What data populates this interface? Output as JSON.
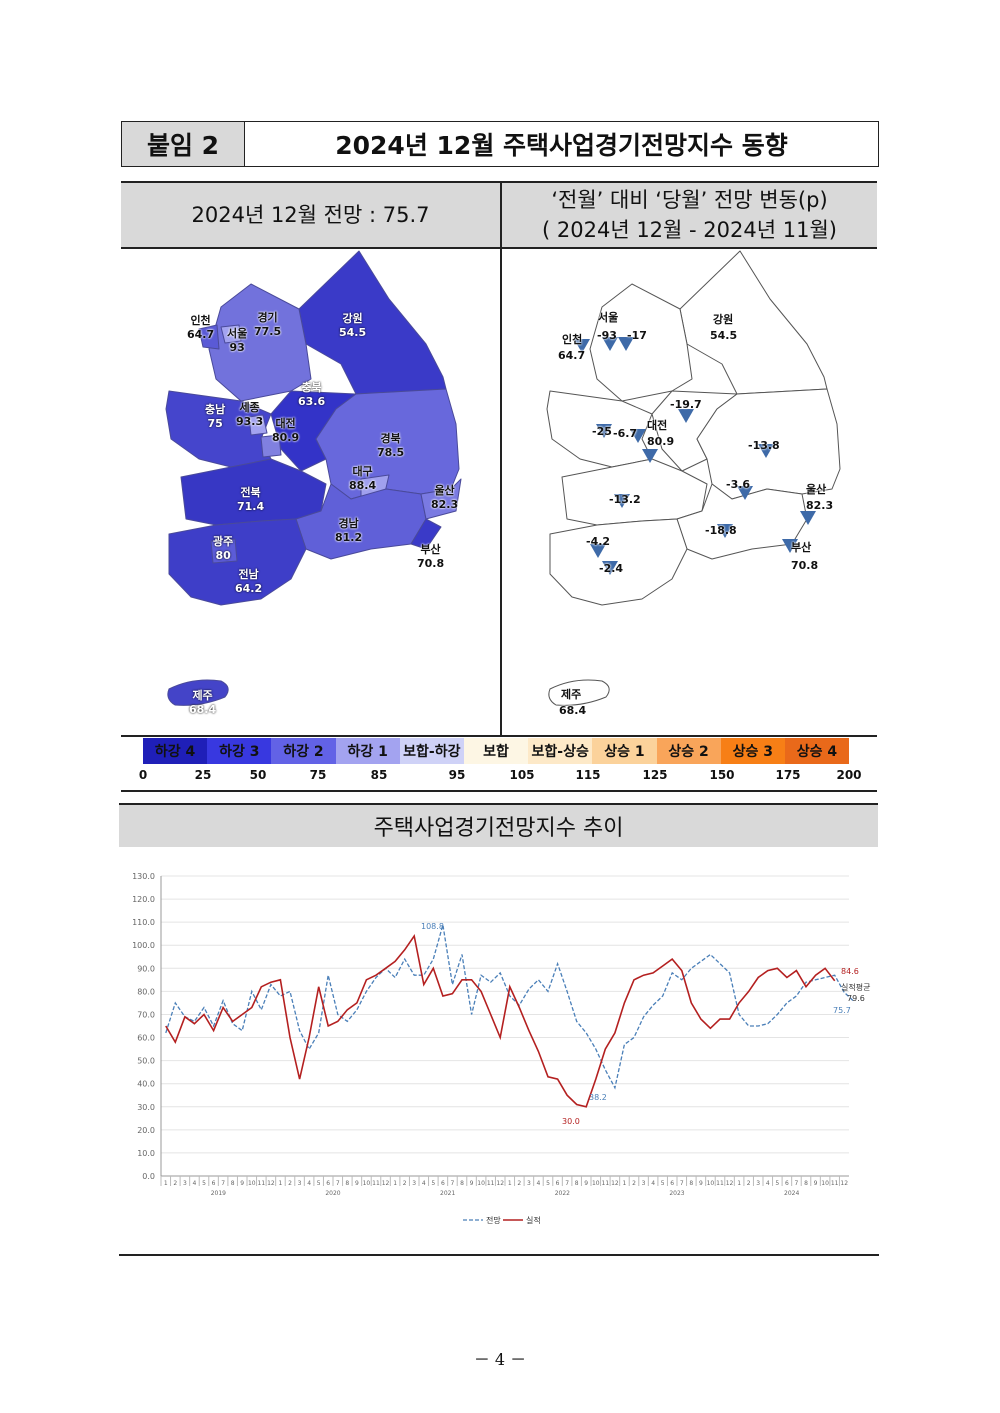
{
  "header": {
    "tag": "붙임 2",
    "title": "2024년 12월 주택사업경기전망지수 동향"
  },
  "map_left": {
    "heading": "2024년 12월 전망 : 75.7",
    "regions": [
      {
        "name": "인천",
        "value": "64.7"
      },
      {
        "name": "서울",
        "value": "93"
      },
      {
        "name": "경기",
        "value": "77.5"
      },
      {
        "name": "강원",
        "value": "54.5"
      },
      {
        "name": "충북",
        "value": "63.6"
      },
      {
        "name": "충남",
        "value": "75"
      },
      {
        "name": "세종",
        "value": "93.3"
      },
      {
        "name": "대전",
        "value": "80.9"
      },
      {
        "name": "경북",
        "value": "78.5"
      },
      {
        "name": "대구",
        "value": "88.4"
      },
      {
        "name": "전북",
        "value": "71.4"
      },
      {
        "name": "울산",
        "value": "82.3"
      },
      {
        "name": "경남",
        "value": "81.2"
      },
      {
        "name": "광주",
        "value": "80"
      },
      {
        "name": "부산",
        "value": "70.8"
      },
      {
        "name": "전남",
        "value": "64.2"
      },
      {
        "name": "제주",
        "value": "68.4"
      }
    ]
  },
  "map_right": {
    "heading_line1": "‘전월’ 대비 ‘당월’ 전망 변동(p)",
    "heading_line2": "( 2024년 12월 -  2024년 11월)",
    "labels": [
      {
        "text": "서울"
      },
      {
        "text": "인천"
      },
      {
        "text": "64.7"
      },
      {
        "text": "-93"
      },
      {
        "text": "-17"
      },
      {
        "text": "강원"
      },
      {
        "text": "54.5"
      },
      {
        "text": "-19.7"
      },
      {
        "text": "-25"
      },
      {
        "text": "-6.7"
      },
      {
        "text": "대전"
      },
      {
        "text": "80.9"
      },
      {
        "text": "-13.8"
      },
      {
        "text": "-3.6"
      },
      {
        "text": "울산"
      },
      {
        "text": "82.3"
      },
      {
        "text": "-13.2"
      },
      {
        "text": "-18.8"
      },
      {
        "text": "-4.2"
      },
      {
        "text": "-2.4"
      },
      {
        "text": "부산"
      },
      {
        "text": "70.8"
      },
      {
        "text": "제주"
      },
      {
        "text": "68.4"
      }
    ]
  },
  "legend": {
    "bins": [
      {
        "label": "하강 4",
        "color": "#1f1fb8"
      },
      {
        "label": "하강 3",
        "color": "#3838e0"
      },
      {
        "label": "하강 2",
        "color": "#6262e6"
      },
      {
        "label": "하강 1",
        "color": "#a3a3f0"
      },
      {
        "label": "보합-하강",
        "color": "#cfd2f7"
      },
      {
        "label": "보합",
        "color": "#fdf6e4"
      },
      {
        "label": "보합-상승",
        "color": "#fde9c8"
      },
      {
        "label": "상승 1",
        "color": "#fbd29b"
      },
      {
        "label": "상승 2",
        "color": "#f9a55a"
      },
      {
        "label": "상승 3",
        "color": "#f77f16"
      },
      {
        "label": "상승 4",
        "color": "#e9691a"
      }
    ],
    "ticks": [
      "0",
      "25",
      "50",
      "75",
      "85",
      "95",
      "105",
      "115",
      "125",
      "150",
      "175",
      "200"
    ]
  },
  "trend": {
    "heading": "주택사업경기전망지수 추이",
    "chart_data": {
      "type": "line",
      "yticks": [
        "0.0",
        "10.0",
        "20.0",
        "30.0",
        "40.0",
        "50.0",
        "60.0",
        "70.0",
        "80.0",
        "90.0",
        "100.0",
        "110.0",
        "120.0",
        "130.0"
      ],
      "ylim": [
        0,
        130
      ],
      "years": [
        "2019",
        "2020",
        "2021",
        "2022",
        "2023",
        "2024"
      ],
      "months": [
        "1",
        "2",
        "3",
        "4",
        "5",
        "6",
        "7",
        "8",
        "9",
        "10",
        "11",
        "12"
      ],
      "series": [
        {
          "name": "전망",
          "color": "#4a7fb8",
          "dashed": true,
          "values": [
            62,
            75,
            69,
            67,
            73,
            65,
            76,
            66,
            63,
            80,
            72,
            83,
            78,
            80,
            63,
            55,
            62,
            87,
            70,
            67,
            72,
            80,
            86,
            90,
            86,
            94,
            87,
            87,
            94,
            108.8,
            83,
            96,
            70,
            87,
            84,
            88,
            78,
            74,
            81,
            85,
            80,
            92,
            80,
            67,
            62,
            55,
            46,
            38.2,
            57,
            60,
            69,
            74,
            78,
            88,
            85,
            90,
            93,
            96,
            92,
            88,
            70,
            65,
            65,
            66,
            70,
            75,
            78,
            84,
            85,
            86,
            87,
            79.6,
            75.7
          ]
        },
        {
          "name": "실적",
          "color": "#b42020",
          "dashed": false,
          "values": [
            65,
            58,
            69,
            66,
            70,
            63,
            73,
            67,
            70,
            73,
            82,
            84,
            85,
            60,
            42,
            60,
            82,
            65,
            67,
            72,
            75,
            85,
            87,
            90,
            93,
            98,
            104,
            83,
            90,
            78,
            79,
            85,
            85,
            80,
            70,
            60,
            82,
            73,
            63,
            54,
            43,
            42,
            35,
            31,
            30,
            42,
            55,
            62,
            75,
            85,
            87,
            88,
            91,
            94,
            89,
            75,
            68,
            64,
            68,
            68,
            75,
            80,
            86,
            89,
            90,
            86,
            89,
            82,
            87,
            90,
            84.6
          ]
        }
      ],
      "annotations": [
        {
          "text": "108.8",
          "color": "#4a7fb8"
        },
        {
          "text": "38.2",
          "color": "#4a7fb8"
        },
        {
          "text": "30.0",
          "color": "#b42020"
        },
        {
          "text": "84.6",
          "color": "#b42020"
        },
        {
          "text": "실적평균",
          "color": "#333"
        },
        {
          "text": "79.6",
          "color": "#333"
        },
        {
          "text": "75.7",
          "color": "#4a7fb8"
        }
      ],
      "legend": [
        {
          "label": "전망"
        },
        {
          "label": "실적"
        }
      ]
    }
  },
  "footer": {
    "page": "－ 4 －"
  }
}
